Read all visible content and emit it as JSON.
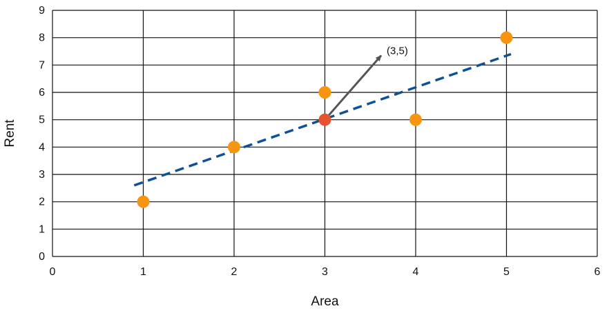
{
  "chart_data": {
    "type": "scatter",
    "title": "",
    "xlabel": "Area",
    "ylabel": "Rent",
    "xlim": [
      0,
      6
    ],
    "ylim": [
      0,
      9
    ],
    "x_ticks": [
      0,
      1,
      2,
      3,
      4,
      5,
      6
    ],
    "y_ticks": [
      0,
      1,
      2,
      3,
      4,
      5,
      6,
      7,
      8,
      9
    ],
    "grid": true,
    "points": [
      {
        "x": 1,
        "y": 2
      },
      {
        "x": 2,
        "y": 4
      },
      {
        "x": 3,
        "y": 6
      },
      {
        "x": 3,
        "y": 5
      },
      {
        "x": 4,
        "y": 5
      },
      {
        "x": 5,
        "y": 8
      }
    ],
    "highlighted_point": {
      "x": 3,
      "y": 5
    },
    "fit_line": {
      "style": "dashed",
      "start": {
        "x": 0.9,
        "y": 2.6
      },
      "end": {
        "x": 5.05,
        "y": 7.4
      }
    },
    "annotation": {
      "text": "(3,5)",
      "arrow_from": {
        "x": 3,
        "y": 5
      },
      "arrow_to": {
        "x": 3.62,
        "y": 7.35
      }
    },
    "colors": {
      "points": "#f7960e",
      "highlighted_point": "#e8532b",
      "fit_line": "#0e5194",
      "arrow": "#555555",
      "grid": "#111111"
    }
  }
}
